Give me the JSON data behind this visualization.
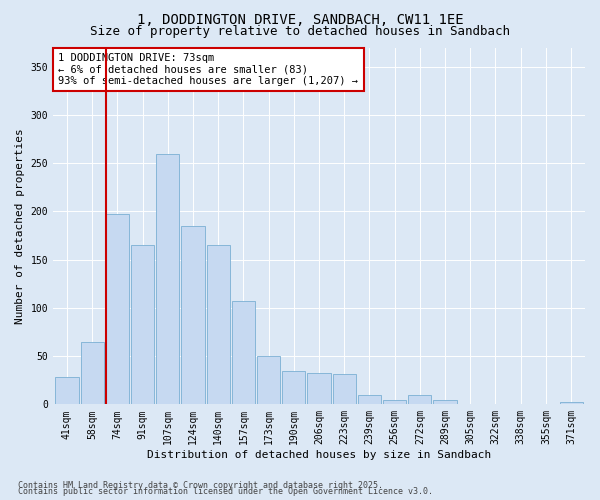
{
  "title_line1": "1, DODDINGTON DRIVE, SANDBACH, CW11 1EE",
  "title_line2": "Size of property relative to detached houses in Sandbach",
  "xlabel": "Distribution of detached houses by size in Sandbach",
  "ylabel": "Number of detached properties",
  "categories": [
    "41sqm",
    "58sqm",
    "74sqm",
    "91sqm",
    "107sqm",
    "124sqm",
    "140sqm",
    "157sqm",
    "173sqm",
    "190sqm",
    "206sqm",
    "223sqm",
    "239sqm",
    "256sqm",
    "272sqm",
    "289sqm",
    "305sqm",
    "322sqm",
    "338sqm",
    "355sqm",
    "371sqm"
  ],
  "values": [
    28,
    65,
    197,
    165,
    260,
    185,
    165,
    107,
    50,
    35,
    33,
    31,
    10,
    4,
    10,
    4,
    0,
    0,
    0,
    0,
    2
  ],
  "bar_color": "#c6d9f1",
  "bar_edge_color": "#7bafd4",
  "vline_color": "#cc0000",
  "vline_x_index": 2,
  "annotation_text": "1 DODDINGTON DRIVE: 73sqm\n← 6% of detached houses are smaller (83)\n93% of semi-detached houses are larger (1,207) →",
  "annotation_box_facecolor": "#ffffff",
  "annotation_box_edgecolor": "#cc0000",
  "ylim": [
    0,
    370
  ],
  "yticks": [
    0,
    50,
    100,
    150,
    200,
    250,
    300,
    350
  ],
  "bg_color": "#dce8f5",
  "plot_bg_color": "#dce8f5",
  "footer_line1": "Contains HM Land Registry data © Crown copyright and database right 2025.",
  "footer_line2": "Contains public sector information licensed under the Open Government Licence v3.0.",
  "title_fontsize": 10,
  "subtitle_fontsize": 9,
  "axis_label_fontsize": 8,
  "tick_fontsize": 7,
  "annotation_fontsize": 7.5,
  "footer_fontsize": 6
}
